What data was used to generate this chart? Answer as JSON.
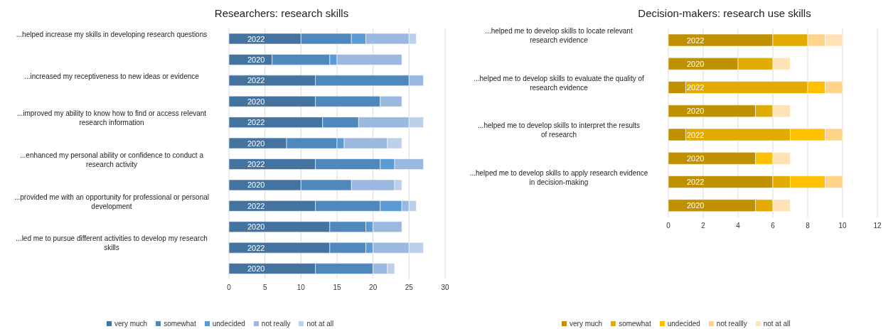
{
  "chart_data": [
    {
      "type": "bar",
      "orientation": "horizontal",
      "stacked": true,
      "title": "Researchers: research skills",
      "categories": [
        "2022",
        "2020",
        "2022",
        "2020",
        "2022",
        "2020",
        "2022",
        "2020",
        "2022",
        "2020",
        "2022",
        "2020"
      ],
      "annotations": [
        "...helped increase my skills in developing research questions",
        "...increased my receptiveness to new ideas or evidence",
        "...improved my ability to know how to find or access relevant research information",
        "...enhanced my personal ability or confidence to conduct a research activity",
        "...provided me with an opportunity for professional or personal development",
        "...led me to pursue different activities to develop my research skills"
      ],
      "series": [
        {
          "name": "very much",
          "color": "#44739f",
          "values": [
            10,
            6,
            12,
            12,
            13,
            8,
            12,
            10,
            12,
            14,
            14,
            12
          ]
        },
        {
          "name": "somewhat",
          "color": "#4f88bc",
          "values": [
            7,
            8,
            13,
            9,
            5,
            7,
            9,
            7,
            9,
            5,
            5,
            8
          ]
        },
        {
          "name": "undecided",
          "color": "#5b9bd5",
          "values": [
            2,
            1,
            0,
            0,
            0,
            1,
            2,
            0,
            3,
            1,
            1,
            0
          ]
        },
        {
          "name": "not really",
          "color": "#9bb9e0",
          "values": [
            6,
            9,
            2,
            3,
            7,
            6,
            4,
            6,
            1,
            4,
            5,
            2
          ]
        },
        {
          "name": "not at all",
          "color": "#bdd0ea",
          "values": [
            1,
            0,
            0,
            0,
            2,
            2,
            0,
            1,
            1,
            0,
            2,
            1
          ]
        }
      ],
      "xlim": [
        0,
        30
      ],
      "xticks": [
        0,
        5,
        10,
        15,
        20,
        25,
        30
      ],
      "grid": "x",
      "legend": "bottom"
    },
    {
      "type": "bar",
      "orientation": "horizontal",
      "stacked": true,
      "title": "Decision-makers: research use skills",
      "categories": [
        "2022",
        "2020",
        "2022",
        "2020",
        "2022",
        "2020",
        "2022",
        "2020"
      ],
      "annotations": [
        "...helped me to develop skills to locate relevant research evidence",
        "...helped me to develop skills to evaluate the quality of research evidence",
        "...helped me to develop skills to interpret the results of research",
        "...helped me to develop skills to apply research evidence in decision-making"
      ],
      "series": [
        {
          "name": "very much",
          "color": "#bf9000",
          "values": [
            6,
            4,
            1,
            5,
            1,
            5,
            6,
            5
          ]
        },
        {
          "name": "somewhat",
          "color": "#e2ab00",
          "values": [
            2,
            2,
            7,
            1,
            6,
            0,
            1,
            1
          ]
        },
        {
          "name": "undecided",
          "color": "#ffc000",
          "values": [
            0,
            0,
            1,
            0,
            2,
            1,
            2,
            0
          ]
        },
        {
          "name": "not reallly",
          "color": "#ffd38a",
          "values": [
            1,
            0,
            1,
            0,
            1,
            0,
            1,
            0
          ]
        },
        {
          "name": "not at all",
          "color": "#ffe2b6",
          "values": [
            1,
            1,
            0,
            1,
            0,
            1,
            0,
            1
          ]
        }
      ],
      "xlim": [
        0,
        12
      ],
      "xticks": [
        0,
        2,
        4,
        6,
        8,
        10,
        12
      ],
      "grid": "x",
      "legend": "bottom"
    }
  ]
}
